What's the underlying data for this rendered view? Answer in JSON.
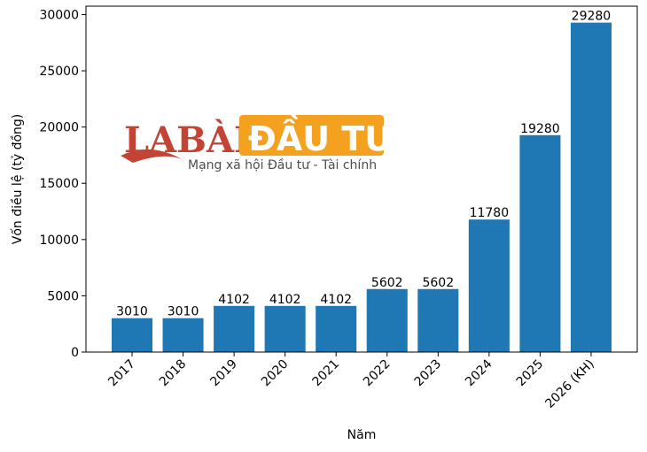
{
  "chart_data": {
    "type": "bar",
    "x_label": "Năm",
    "y_label": "Vốn điều lệ (tỷ đồng)",
    "categories": [
      "2017",
      "2018",
      "2019",
      "2020",
      "2021",
      "2022",
      "2023",
      "2024",
      "2025",
      "2026 (KH)"
    ],
    "values": [
      3010,
      3010,
      4102,
      4102,
      4102,
      5602,
      5602,
      11780,
      19280,
      29280
    ],
    "color": "#1f77b4",
    "ylim": [
      0,
      30744
    ],
    "yticks": [
      0,
      5000,
      10000,
      15000,
      20000,
      25000,
      30000
    ],
    "grid": false,
    "watermark": {
      "brand": "LABÀN",
      "highlight": "ĐẦU TƯ",
      "tagline": "Mạng xã hội Đầu tư - Tài chính"
    }
  }
}
